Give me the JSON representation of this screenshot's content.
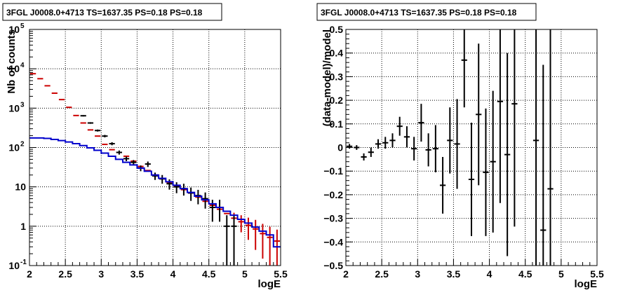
{
  "chart_data": [
    {
      "type": "scatter",
      "title": "3FGL J0008.0+4713 TS=1637.35 PS=0.18 PS=0.18",
      "xlabel": "logE",
      "ylabel": "Nb of counts",
      "xlim": [
        2,
        5.5
      ],
      "ylim": [
        0.1,
        100000
      ],
      "yscale": "log",
      "grid": true,
      "x_ticks": [
        "2",
        "2.5",
        "3",
        "3.5",
        "4",
        "4.5",
        "5",
        "5.5"
      ],
      "y_ticks": [
        "10^-1",
        "1",
        "10",
        "10^2",
        "10^3",
        "10^4",
        "10^5"
      ],
      "series": [
        {
          "kind": "model-points",
          "color": "#cc0000",
          "x": [
            2.05,
            2.15,
            2.25,
            2.35,
            2.45,
            2.55,
            2.65,
            2.75,
            2.85,
            2.95,
            3.05,
            3.15,
            3.25,
            3.35,
            3.45,
            3.55,
            3.65,
            3.75,
            3.85,
            3.95,
            4.05,
            4.15,
            4.25,
            4.35,
            4.45,
            4.55,
            4.65,
            4.75,
            4.85,
            4.95,
            5.05,
            5.15,
            5.25,
            5.35,
            5.45
          ],
          "y": [
            7500,
            5600,
            3700,
            2400,
            1650,
            1050,
            650,
            420,
            280,
            195,
            120,
            88,
            75,
            60,
            45,
            33,
            26,
            20,
            16,
            13,
            10.5,
            8.5,
            7,
            5.5,
            4.3,
            3.4,
            2.7,
            2.1,
            1.6,
            1.3,
            1.05,
            0.85,
            0.65,
            0.52,
            0.42
          ],
          "yerr": [
            0,
            0,
            0,
            0,
            0,
            0,
            0,
            0,
            0,
            0,
            0,
            0,
            0,
            0,
            0,
            0,
            0,
            0,
            0,
            0,
            0,
            0,
            0,
            0,
            0,
            0,
            0,
            0,
            0.6,
            0.6,
            0.6,
            0.6,
            0.5,
            0.45,
            0.4
          ]
        },
        {
          "kind": "data-points",
          "color": "#000000",
          "x": [
            2.75,
            2.85,
            2.95,
            3.05,
            3.15,
            3.25,
            3.35,
            3.45,
            3.55,
            3.65,
            3.75,
            3.85,
            3.95,
            4.05,
            4.15,
            4.25,
            4.35,
            4.45,
            4.55,
            4.65,
            4.75,
            4.85
          ],
          "y": [
            640,
            420,
            270,
            195,
            125,
            75,
            52,
            42,
            30,
            38,
            19,
            16,
            12,
            10,
            9,
            7,
            6,
            5,
            3,
            3,
            1,
            1
          ],
          "yerr": [
            25,
            20,
            16,
            14,
            11,
            9,
            7,
            6,
            5,
            6,
            4,
            4,
            3.5,
            3.1,
            3,
            2.6,
            2.4,
            2.2,
            1.7,
            1.7,
            0.9,
            0.9
          ]
        },
        {
          "kind": "model-histogram",
          "color": "#0000cc",
          "x": [
            2.05,
            2.15,
            2.25,
            2.35,
            2.45,
            2.55,
            2.65,
            2.75,
            2.85,
            2.95,
            3.05,
            3.15,
            3.25,
            3.35,
            3.45,
            3.55,
            3.65,
            3.75,
            3.85,
            3.95,
            4.05,
            4.15,
            4.25,
            4.35,
            4.45,
            4.55,
            4.65,
            4.75,
            4.85,
            4.95,
            5.05,
            5.15,
            5.25,
            5.35,
            5.45
          ],
          "y": [
            175,
            175,
            170,
            160,
            150,
            138,
            125,
            112,
            98,
            85,
            72,
            60,
            50,
            42,
            36,
            30,
            25,
            20,
            16.5,
            13.5,
            11,
            9,
            7.2,
            5.8,
            4.7,
            3.7,
            3,
            2.4,
            1.9,
            1.5,
            1.2,
            0.95,
            0.75,
            0.6,
            0.3
          ]
        }
      ]
    },
    {
      "type": "scatter",
      "title": "3FGL J0008.0+4713 TS=1637.35 PS=0.18 PS=0.18",
      "xlabel": "logE",
      "ylabel": "(data-model)/model",
      "xlim": [
        2,
        5.5
      ],
      "ylim": [
        -0.5,
        0.5
      ],
      "grid": true,
      "x_ticks": [
        "2",
        "2.5",
        "3",
        "3.5",
        "4",
        "4.5",
        "5",
        "5.5"
      ],
      "y_ticks": [
        "−0.5",
        "−0.4",
        "−0.3",
        "−0.2",
        "−0.1",
        "0",
        "0.1",
        "0.2",
        "0.3",
        "0.4",
        "0.5"
      ],
      "series": [
        {
          "kind": "residuals",
          "color": "#000000",
          "x": [
            2.05,
            2.15,
            2.25,
            2.35,
            2.45,
            2.55,
            2.65,
            2.75,
            2.85,
            2.95,
            3.05,
            3.15,
            3.25,
            3.35,
            3.45,
            3.55,
            3.65,
            3.75,
            3.85,
            3.95,
            4.05,
            4.15,
            4.25,
            4.35,
            4.65,
            4.75,
            4.85
          ],
          "y": [
            0.005,
            0.0,
            -0.04,
            -0.02,
            0.015,
            0.02,
            0.03,
            0.09,
            0.045,
            -0.005,
            0.105,
            -0.01,
            -0.005,
            -0.16,
            0.03,
            0.015,
            0.37,
            -0.135,
            0.14,
            -0.105,
            -0.06,
            0.195,
            -0.03,
            0.185,
            0.03,
            -0.35,
            -0.175
          ],
          "yerr": [
            0.01,
            0.01,
            0.015,
            0.02,
            0.02,
            0.025,
            0.03,
            0.04,
            0.045,
            0.05,
            0.08,
            0.07,
            0.1,
            0.12,
            0.14,
            0.19,
            0.2,
            0.24,
            0.3,
            0.27,
            0.3,
            0.43,
            0.43,
            0.52,
            0.7,
            0.7,
            0.7
          ]
        }
      ]
    }
  ]
}
